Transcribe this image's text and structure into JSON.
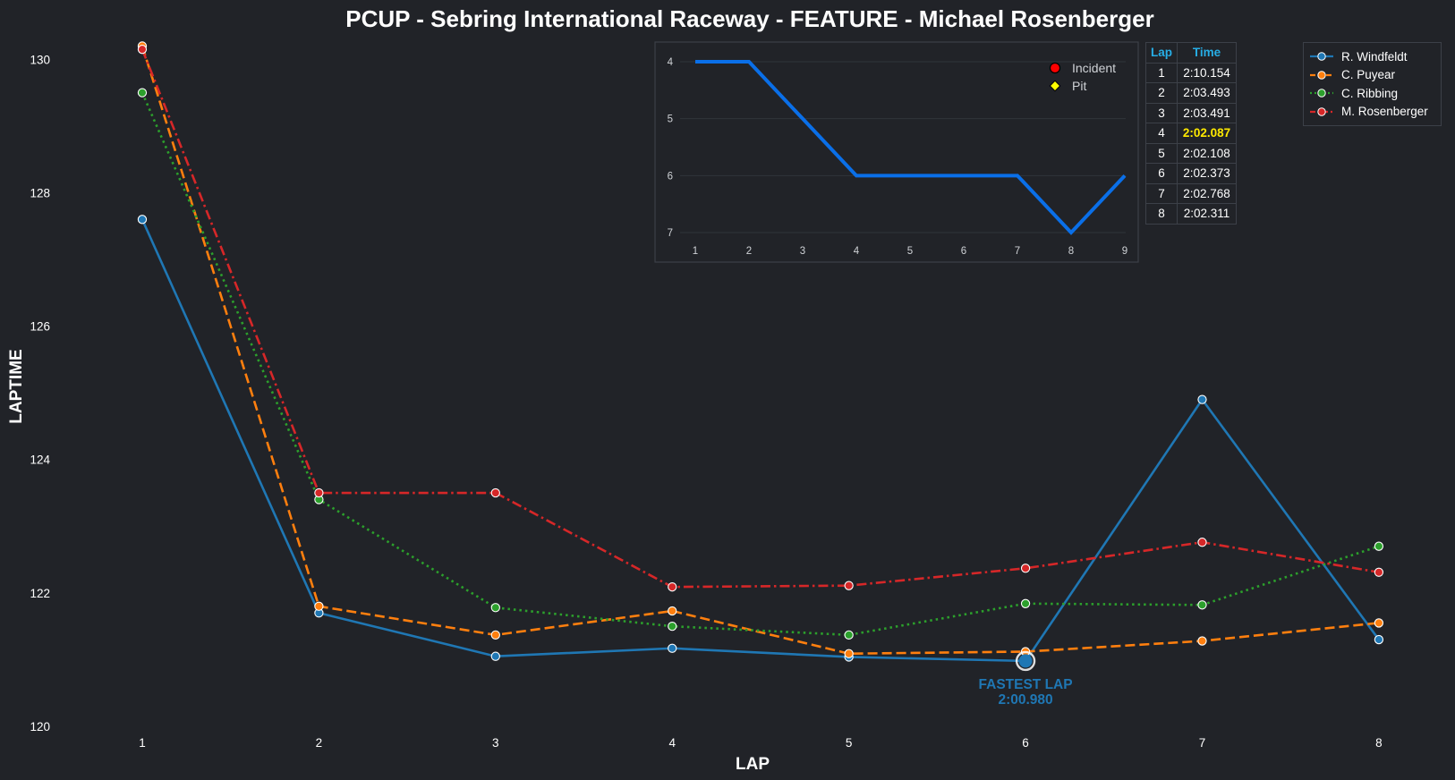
{
  "title": "PCUP - Sebring International Raceway - FEATURE - Michael Rosenberger",
  "chart_data": [
    {
      "type": "line",
      "title": "PCUP - Sebring International Raceway - FEATURE - Michael Rosenberger",
      "xlabel": "LAP",
      "ylabel": "LAPTIME",
      "x": [
        1,
        2,
        3,
        4,
        5,
        6,
        7,
        8
      ],
      "xticks": [
        "1",
        "2",
        "3",
        "4",
        "5",
        "6",
        "7",
        "8"
      ],
      "xlim": [
        0.6,
        8.35
      ],
      "ylim": [
        120,
        130.3
      ],
      "yticks": [
        "120",
        "122",
        "124",
        "126",
        "128",
        "130"
      ],
      "grid": false,
      "legend_position": "top-right",
      "series": [
        {
          "name": "R. Windfeldt",
          "color": "#1f77b4",
          "style": "solid",
          "values": [
            127.6,
            121.7,
            121.05,
            121.17,
            121.04,
            120.98,
            124.9,
            121.3
          ]
        },
        {
          "name": "C. Puyear",
          "color": "#ff7f0e",
          "style": "dashed",
          "values": [
            130.2,
            121.8,
            121.37,
            121.73,
            121.09,
            121.12,
            121.28,
            121.55
          ]
        },
        {
          "name": "C. Ribbing",
          "color": "#2ca02c",
          "style": "dotted",
          "values": [
            129.5,
            123.4,
            121.78,
            121.5,
            121.37,
            121.84,
            121.82,
            122.7
          ]
        },
        {
          "name": "M. Rosenberger",
          "color": "#d62728",
          "style": "dashdot",
          "values": [
            130.15,
            123.5,
            123.5,
            122.09,
            122.11,
            122.37,
            122.76,
            122.31
          ]
        }
      ],
      "annotation": {
        "label": "FASTEST LAP",
        "value": "2:00.980",
        "x": 6,
        "y": 120.98,
        "color": "#1f77b4"
      }
    },
    {
      "type": "line",
      "title": "",
      "x": [
        1,
        2,
        3,
        4,
        5,
        6,
        7,
        8,
        9
      ],
      "values": [
        4,
        4,
        5,
        6,
        6,
        6,
        6,
        7,
        6
      ],
      "ylim": [
        7.15,
        3.85
      ],
      "yticks": [
        "4",
        "5",
        "6",
        "7"
      ],
      "xticks": [
        "1",
        "2",
        "3",
        "4",
        "5",
        "6",
        "7",
        "8",
        "9"
      ],
      "color": "#0a6fe8",
      "grid": true,
      "legend": [
        {
          "label": "Incident",
          "marker": "circle",
          "color": "#ff0000"
        },
        {
          "label": "Pit",
          "marker": "diamond",
          "color": "#ffff00"
        }
      ]
    }
  ],
  "lap_table": {
    "headers": [
      "Lap",
      "Time"
    ],
    "rows": [
      {
        "lap": "1",
        "time": "2:10.154"
      },
      {
        "lap": "2",
        "time": "2:03.493"
      },
      {
        "lap": "3",
        "time": "2:03.491"
      },
      {
        "lap": "4",
        "time": "2:02.087"
      },
      {
        "lap": "5",
        "time": "2:02.108"
      },
      {
        "lap": "6",
        "time": "2:02.373"
      },
      {
        "lap": "7",
        "time": "2:02.768"
      },
      {
        "lap": "8",
        "time": "2:02.311"
      }
    ],
    "highlight_lap": "4",
    "highlight_color": "#ffea00"
  }
}
